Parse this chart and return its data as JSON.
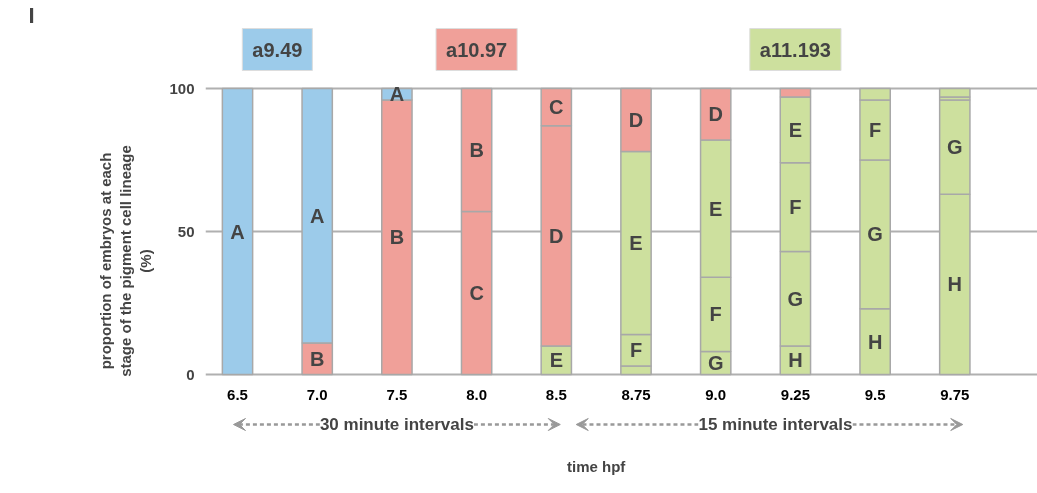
{
  "chart_data": {
    "type": "bar",
    "stacked": true,
    "categories": [
      "6.5",
      "7.0",
      "7.5",
      "8.0",
      "8.5",
      "8.75",
      "9.0",
      "9.25",
      "9.5",
      "9.75"
    ],
    "xlabel": "time hpf",
    "ylabel": "proportion of embryos at each\nstage of the pigment cell lineage\n(%)",
    "ylim": [
      0,
      100
    ],
    "yticks": [
      0,
      50,
      100
    ],
    "grid": "y",
    "annotations": [
      "I",
      "a9.49",
      "a10.97",
      "a11.193",
      "30 minute intervals",
      "15 minute intervals"
    ],
    "series": [
      {
        "color": "#cde09e",
        "values": [
          null,
          null,
          null,
          null,
          null,
          null,
          null,
          10,
          23,
          63
        ],
        "value_labels": [
          null,
          null,
          null,
          null,
          null,
          null,
          null,
          "H",
          "H",
          "H"
        ]
      },
      {
        "color": "#cde09e",
        "values": [
          null,
          null,
          null,
          null,
          null,
          3,
          8,
          33,
          52,
          33
        ],
        "value_labels": [
          null,
          null,
          null,
          null,
          null,
          null,
          "G",
          "G",
          "G",
          "G"
        ]
      },
      {
        "color": "#cde09e",
        "values": [
          null,
          null,
          null,
          null,
          null,
          11,
          26,
          31,
          21,
          1
        ],
        "value_labels": [
          null,
          null,
          null,
          null,
          null,
          "F",
          "F",
          "F",
          "F",
          null
        ]
      },
      {
        "color": "#cde09e",
        "values": [
          null,
          null,
          null,
          null,
          10,
          64,
          48,
          23,
          4,
          3
        ],
        "value_labels": [
          null,
          null,
          null,
          null,
          "E",
          "E",
          "E",
          "E",
          null,
          null
        ]
      },
      {
        "color": "#f0a099",
        "values": [
          null,
          null,
          null,
          null,
          77,
          22,
          18,
          3,
          null,
          null
        ],
        "value_labels": [
          null,
          null,
          null,
          null,
          "D",
          "D",
          "D",
          null,
          null,
          null
        ]
      },
      {
        "color": "#f0a099",
        "values": [
          null,
          null,
          null,
          57,
          13,
          null,
          null,
          null,
          null,
          null
        ],
        "value_labels": [
          null,
          null,
          null,
          "C",
          "C",
          null,
          null,
          null,
          null,
          null
        ]
      },
      {
        "color": "#f0a099",
        "values": [
          null,
          11,
          96,
          43,
          null,
          null,
          null,
          null,
          null,
          null
        ],
        "value_labels": [
          null,
          "B",
          "B",
          "B",
          null,
          null,
          null,
          null,
          null,
          null
        ]
      },
      {
        "color": "#9ccbea",
        "values": [
          100,
          89,
          4,
          null,
          null,
          null,
          null,
          null,
          null,
          null
        ],
        "value_labels": [
          "A",
          "A",
          "A",
          null,
          null,
          null,
          null,
          null,
          null,
          null
        ]
      }
    ]
  }
}
